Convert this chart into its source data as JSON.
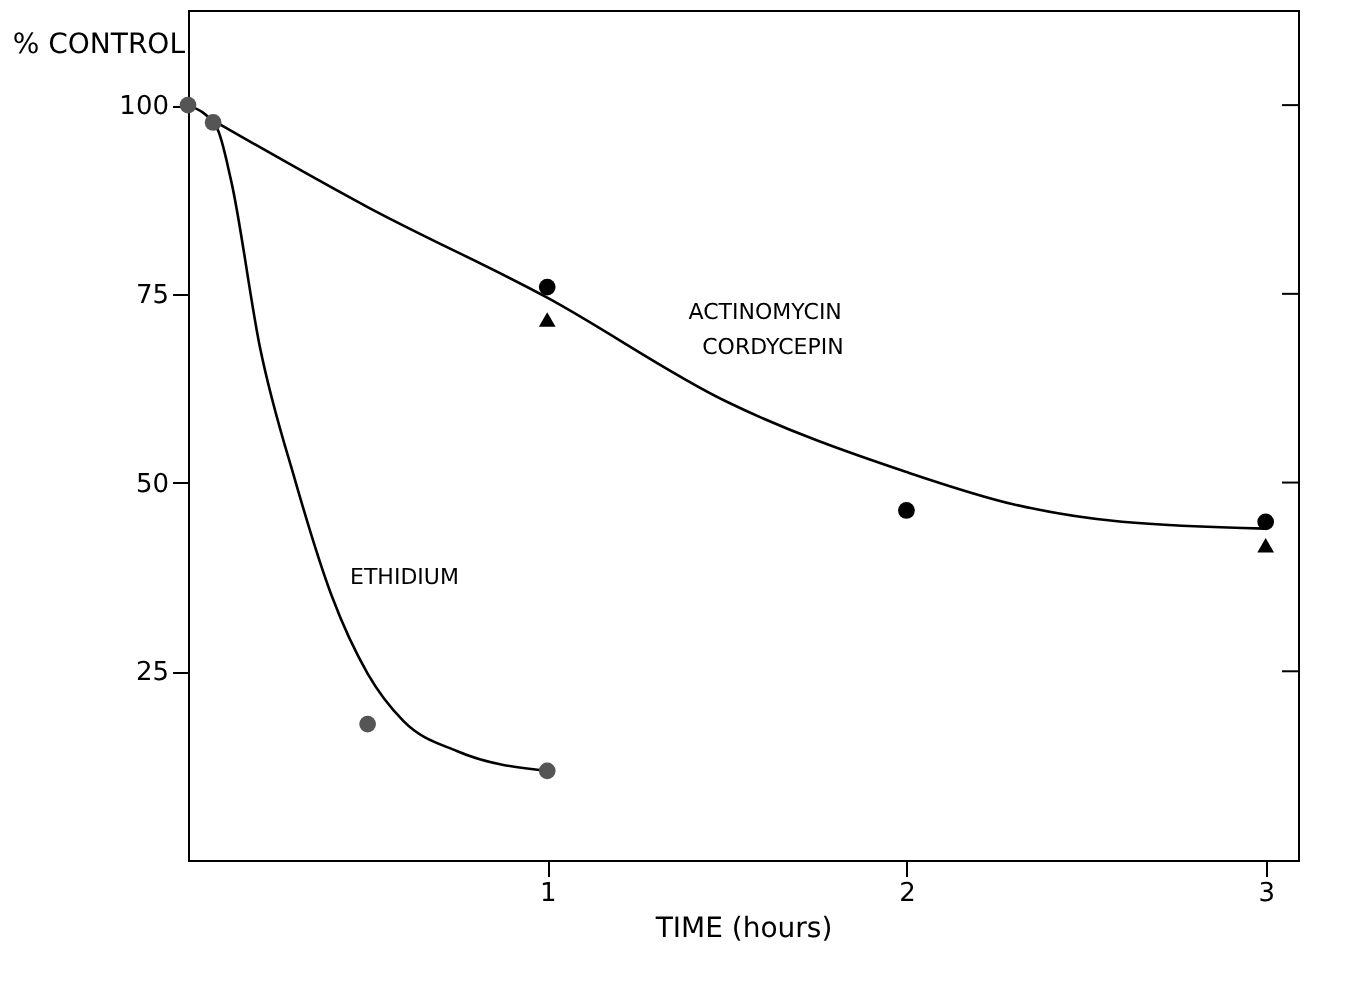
{
  "chart_data": {
    "type": "scatter",
    "xlabel": "TIME (hours)",
    "ylabel": "% CONTROL",
    "xlim": [
      0,
      3.09
    ],
    "xticks": [
      1,
      2,
      3
    ],
    "ylim": [
      0,
      112.6
    ],
    "yticks": [
      25,
      50,
      75,
      100
    ],
    "grid": false,
    "series": [
      {
        "type": "line",
        "color": "#000000",
        "marker": "none",
        "line_style": "solid",
        "x": [
          0.08,
          0.5,
          1,
          1.5,
          2,
          2.3,
          2.6,
          3
        ],
        "values": [
          97.7,
          86.5,
          74.5,
          60.7,
          51.4,
          47.1,
          44.8,
          43.9
        ]
      },
      {
        "type": "line",
        "color": "#000000",
        "marker": "none",
        "line_style": "solid",
        "x": [
          0,
          0.08,
          0.12,
          0.2,
          0.3,
          0.4,
          0.5,
          0.6,
          0.75,
          1
        ],
        "values": [
          100,
          97,
          90,
          68,
          50,
          35,
          24.7,
          18.4,
          14.4,
          11.8
        ]
      },
      {
        "color": "#000000",
        "marker": "circle",
        "x": [
          1,
          2,
          3
        ],
        "values": [
          75.9,
          46.3,
          44.8
        ]
      },
      {
        "color": "#000000",
        "marker": "triangle",
        "x": [
          1,
          3
        ],
        "values": [
          71.6,
          41.7
        ]
      },
      {
        "color": "#555555",
        "marker": "circle",
        "x": [
          0,
          0.07,
          0.5,
          1
        ],
        "values": [
          100,
          97.7,
          18,
          11.8
        ]
      }
    ],
    "annotations": [
      "ACTINOMYCIN",
      "CORDYCEPIN",
      "ETHIDIUM"
    ]
  }
}
